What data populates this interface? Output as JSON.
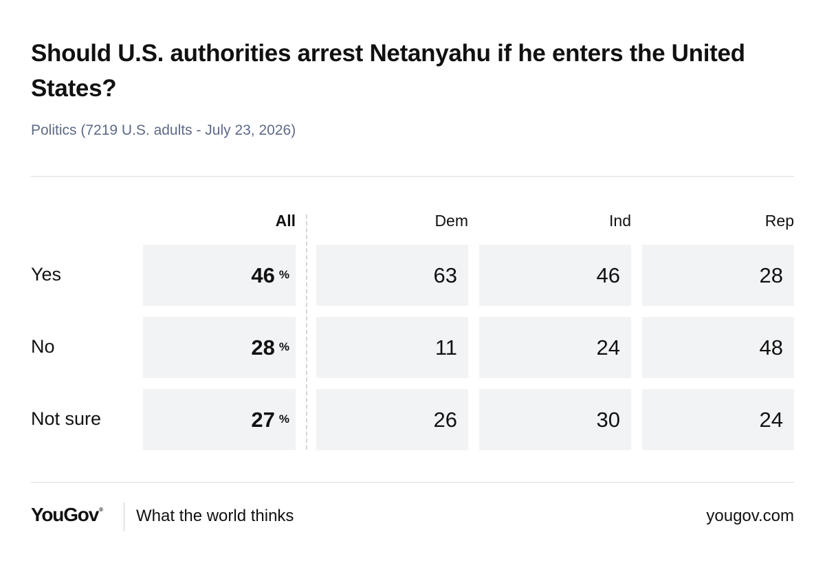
{
  "title": "Should U.S. authorities arrest Netanyahu if he enters the United States?",
  "subtitle": "Politics (7219 U.S. adults - July 23, 2026)",
  "chart_data": {
    "type": "table",
    "title": "Should U.S. authorities arrest Netanyahu if he enters the United States?",
    "columns": [
      "All",
      "Dem",
      "Ind",
      "Rep"
    ],
    "unit": "%",
    "rows": [
      {
        "label": "Yes",
        "values": [
          46,
          63,
          46,
          28
        ]
      },
      {
        "label": "No",
        "values": [
          28,
          11,
          24,
          48
        ]
      },
      {
        "label": "Not sure",
        "values": [
          27,
          26,
          30,
          24
        ]
      }
    ]
  },
  "footer": {
    "logo": "YouGov",
    "logo_mark": "®",
    "tagline": "What the world thinks",
    "site": "yougov.com"
  },
  "colors": {
    "subtitle": "#5d6a86",
    "cell_background": "#f2f3f5",
    "rule": "#d9dce2"
  }
}
